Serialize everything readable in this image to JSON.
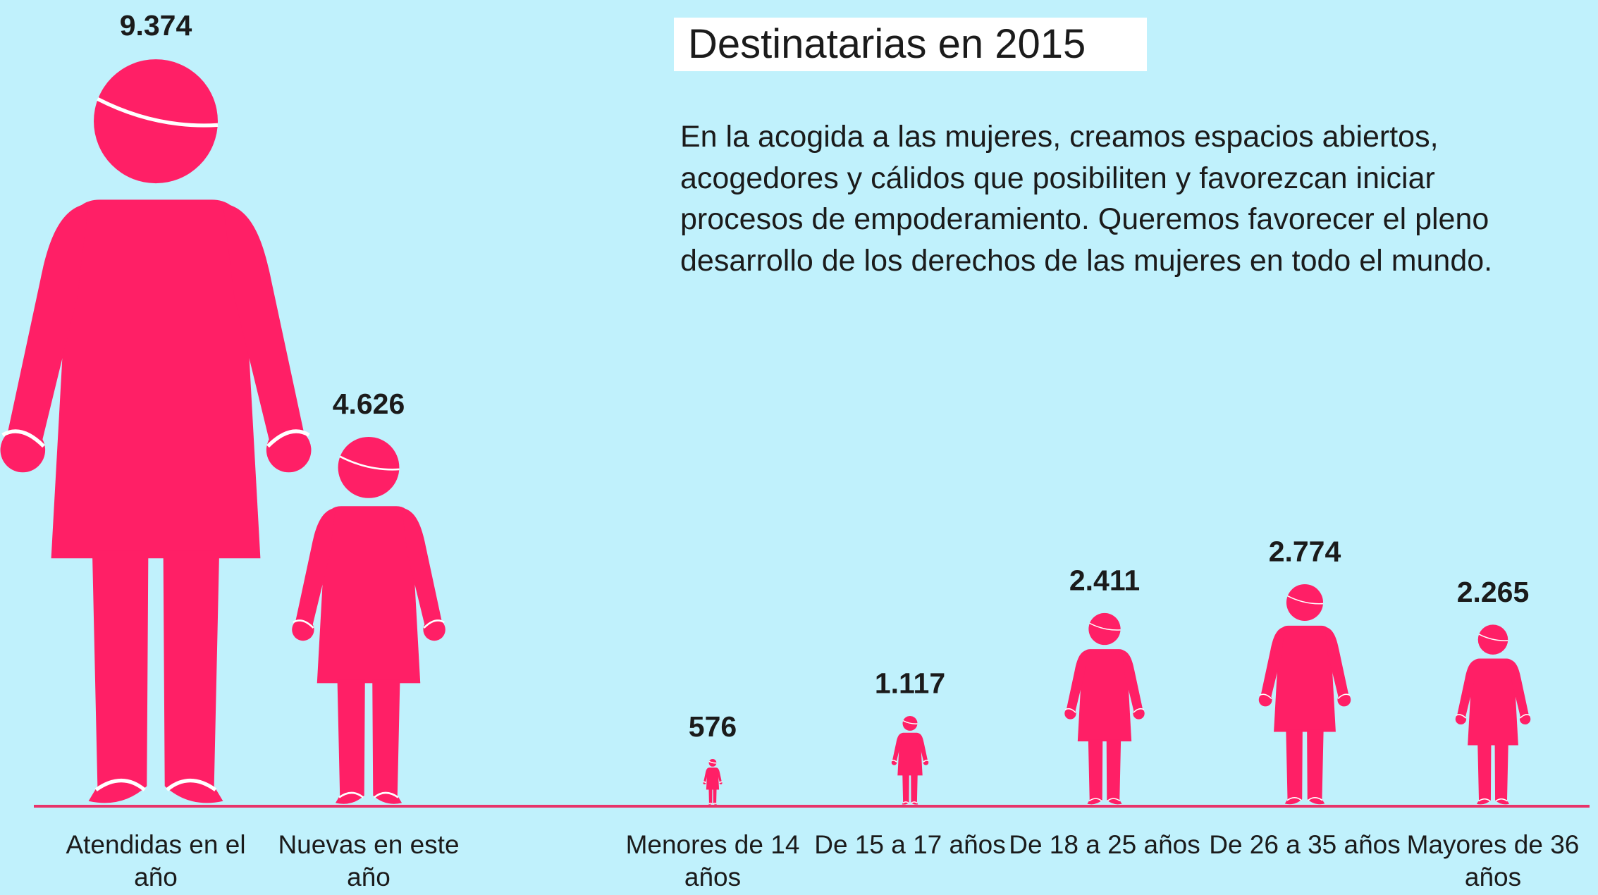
{
  "chart_data": {
    "type": "pictogram",
    "title": "Destinatarias en 2015",
    "description": "En la acogida a las mujeres, creamos espacios abiertos, acogedores y cálidos que posibiliten y favorezcan iniciar procesos de empoderamiento. Queremos favorecer el pleno desarrollo de los derechos de las mujeres en todo el mundo.",
    "categories": [
      "Atendidas en el año",
      "Nuevas en este año",
      "Menores de 14 años",
      "De 15 a 17 años",
      "De 18 a 25 años",
      "De 26 a 35 años",
      "Mayores de 36 años"
    ],
    "values": [
      9374,
      4626,
      576,
      1117,
      2411,
      2774,
      2265
    ],
    "value_labels": [
      "9.374",
      "4.626",
      "576",
      "1.117",
      "2.411",
      "2.774",
      "2.265"
    ],
    "color": "#ff1f66"
  }
}
